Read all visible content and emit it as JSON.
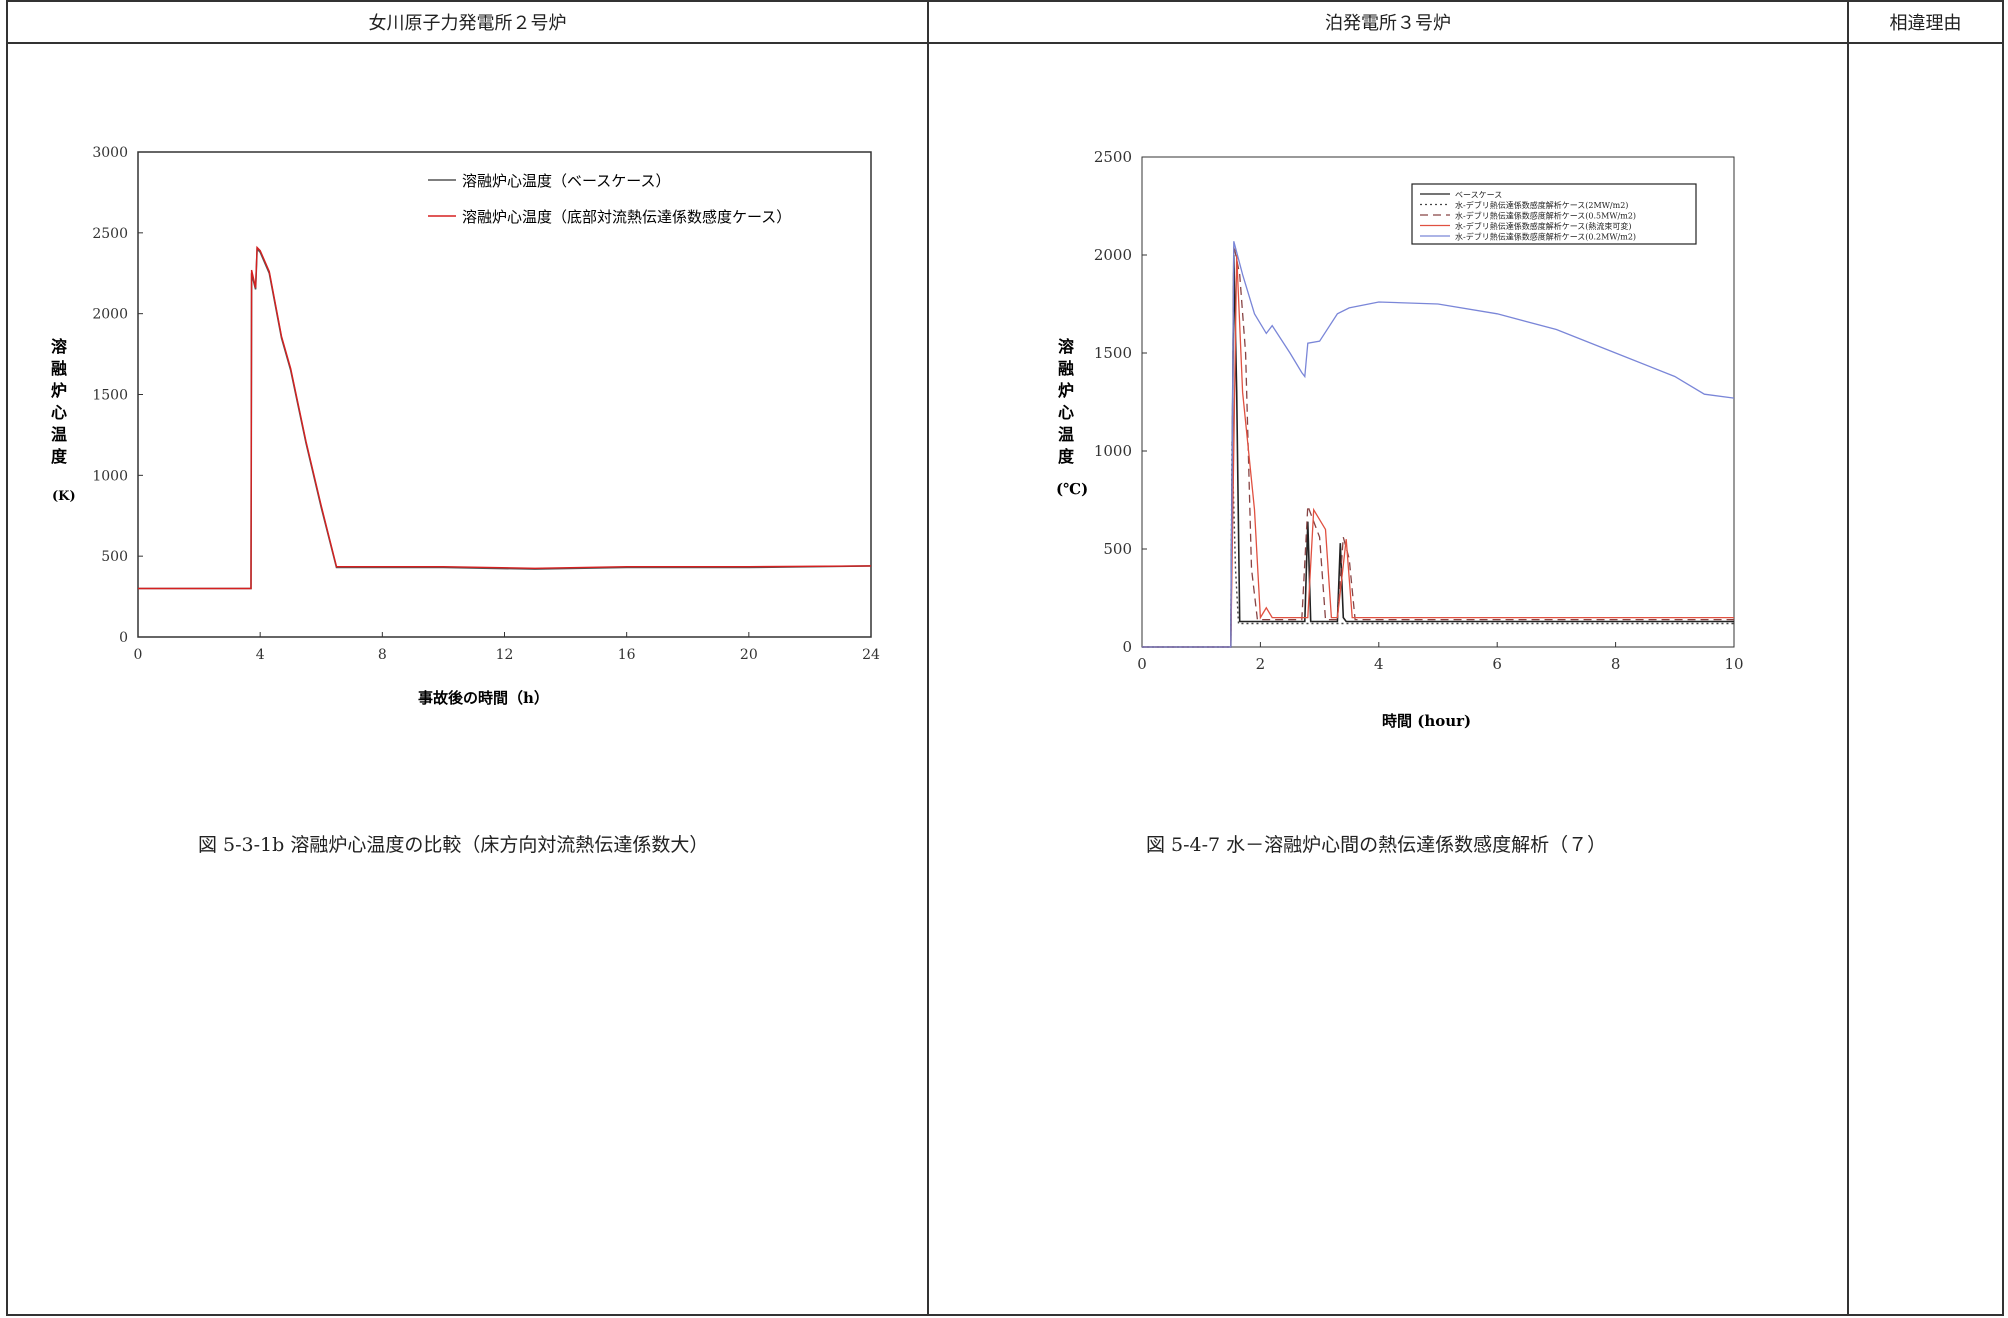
{
  "table": {
    "headers": [
      "女川原子力発電所２号炉",
      "泊発電所３号炉",
      "相違理由"
    ]
  },
  "left": {
    "caption": "図 5-3-1b 溶融炉心温度の比較（床方向対流熱伝達係数大）",
    "y_label_chars": [
      "溶",
      "融",
      "炉",
      "心",
      "温",
      "度"
    ],
    "y_unit": "(K)",
    "legend": [
      "溶融炉心温度（ベースケース）",
      "溶融炉心温度（底部対流熱伝達係数感度ケース）"
    ],
    "colors": {
      "base": "#555555",
      "sens": "#d62020"
    }
  },
  "right": {
    "caption": "図 5-4-7 水－溶融炉心間の熱伝達係数感度解析（７）",
    "y_label_chars": [
      "溶",
      "融",
      "炉",
      "心",
      "温",
      "度"
    ],
    "y_unit": "(℃)",
    "legend": [
      "ベースケース",
      "水-デブリ熱伝達係数感度解析ケース(2MW/m2)",
      "水-デブリ熱伝達係数感度解析ケース(0.5MW/m2)",
      "水-デブリ熱伝達係数感度解析ケース(熱流束可変)",
      "水-デブリ熱伝達係数感度解析ケース(0.2MW/m2)"
    ],
    "colors": {
      "base": "#222222",
      "s2": "#444444",
      "s05": "#884444",
      "var": "#e05040",
      "s02": "#7a86d8"
    }
  },
  "chart_data": [
    {
      "type": "line",
      "title": "",
      "xlabel": "事故後の時間（h）",
      "ylabel": "溶融炉心温度 (K)",
      "xlim": [
        0,
        24
      ],
      "ylim": [
        0,
        3000
      ],
      "xticks": [
        0,
        4,
        8,
        12,
        16,
        20,
        24
      ],
      "yticks": [
        0,
        500,
        1000,
        1500,
        2000,
        2500,
        3000
      ],
      "series": [
        {
          "name": "溶融炉心温度（ベースケース）",
          "x": [
            0,
            3.7,
            3.72,
            3.85,
            3.9,
            4.0,
            4.3,
            4.7,
            5.0,
            5.5,
            6.0,
            6.5,
            10,
            13,
            16,
            20,
            24
          ],
          "y": [
            300,
            300,
            2250,
            2150,
            2400,
            2380,
            2250,
            1850,
            1650,
            1200,
            800,
            430,
            430,
            420,
            430,
            430,
            440
          ]
        },
        {
          "name": "溶融炉心温度（底部対流熱伝達係数感度ケース）",
          "x": [
            0,
            3.7,
            3.72,
            3.85,
            3.9,
            4.0,
            4.3,
            4.7,
            5.0,
            5.5,
            6.0,
            6.5,
            10,
            13,
            16,
            20,
            24
          ],
          "y": [
            300,
            300,
            2270,
            2160,
            2410,
            2390,
            2260,
            1860,
            1660,
            1210,
            810,
            435,
            435,
            425,
            435,
            435,
            440
          ]
        }
      ]
    },
    {
      "type": "line",
      "title": "",
      "xlabel": "時間 (hour)",
      "ylabel": "溶融炉心温度 (℃)",
      "xlim": [
        0,
        10
      ],
      "ylim": [
        0,
        2500
      ],
      "xticks": [
        0,
        2,
        4,
        6,
        8,
        10
      ],
      "yticks": [
        0,
        500,
        1000,
        1500,
        2000,
        2500
      ],
      "series": [
        {
          "name": "ベースケース",
          "x": [
            0,
            1.5,
            1.55,
            1.6,
            1.65,
            1.7,
            2.0,
            2.5,
            2.75,
            2.8,
            2.85,
            2.9,
            3.3,
            3.35,
            3.4,
            3.45,
            3.5,
            4,
            10
          ],
          "y": [
            0,
            0,
            2000,
            1300,
            130,
            130,
            130,
            130,
            130,
            640,
            130,
            130,
            130,
            530,
            150,
            130,
            130,
            130,
            130
          ]
        },
        {
          "name": "水-デブリ熱伝達係数感度解析ケース(2MW/m2)",
          "x": [
            0,
            1.5,
            1.52,
            1.58,
            1.63,
            1.7,
            4,
            10
          ],
          "y": [
            0,
            0,
            1050,
            400,
            120,
            120,
            120,
            120
          ]
        },
        {
          "name": "水-デブリ熱伝達係数感度解析ケース(0.5MW/m2)",
          "x": [
            0,
            1.5,
            1.55,
            1.65,
            1.75,
            1.85,
            1.95,
            2.1,
            2.7,
            2.8,
            3.0,
            3.1,
            3.3,
            3.4,
            3.5,
            3.6,
            4,
            10
          ],
          "y": [
            0,
            0,
            2050,
            1900,
            1500,
            400,
            140,
            140,
            140,
            720,
            560,
            140,
            140,
            560,
            450,
            140,
            140,
            140
          ]
        },
        {
          "name": "水-デブリ熱伝達係数感度解析ケース(熱流束可変)",
          "x": [
            0,
            1.5,
            1.6,
            1.7,
            1.9,
            2.0,
            2.1,
            2.2,
            2.8,
            2.9,
            3.1,
            3.2,
            3.3,
            3.45,
            3.55,
            4,
            10
          ],
          "y": [
            0,
            0,
            2000,
            1300,
            700,
            150,
            200,
            150,
            150,
            700,
            600,
            150,
            150,
            550,
            150,
            150,
            150
          ]
        },
        {
          "name": "水-デブリ熱伝達係数感度解析ケース(0.2MW/m2)",
          "x": [
            0,
            1.5,
            1.55,
            1.7,
            1.9,
            2.1,
            2.2,
            2.5,
            2.7,
            2.75,
            2.8,
            3.0,
            3.3,
            3.5,
            4.0,
            5.0,
            6.0,
            7.0,
            8.0,
            9.0,
            9.5,
            10
          ],
          "y": [
            0,
            0,
            2070,
            1900,
            1700,
            1600,
            1640,
            1500,
            1400,
            1380,
            1550,
            1560,
            1700,
            1730,
            1760,
            1750,
            1700,
            1620,
            1500,
            1380,
            1290,
            1270
          ]
        }
      ]
    }
  ]
}
